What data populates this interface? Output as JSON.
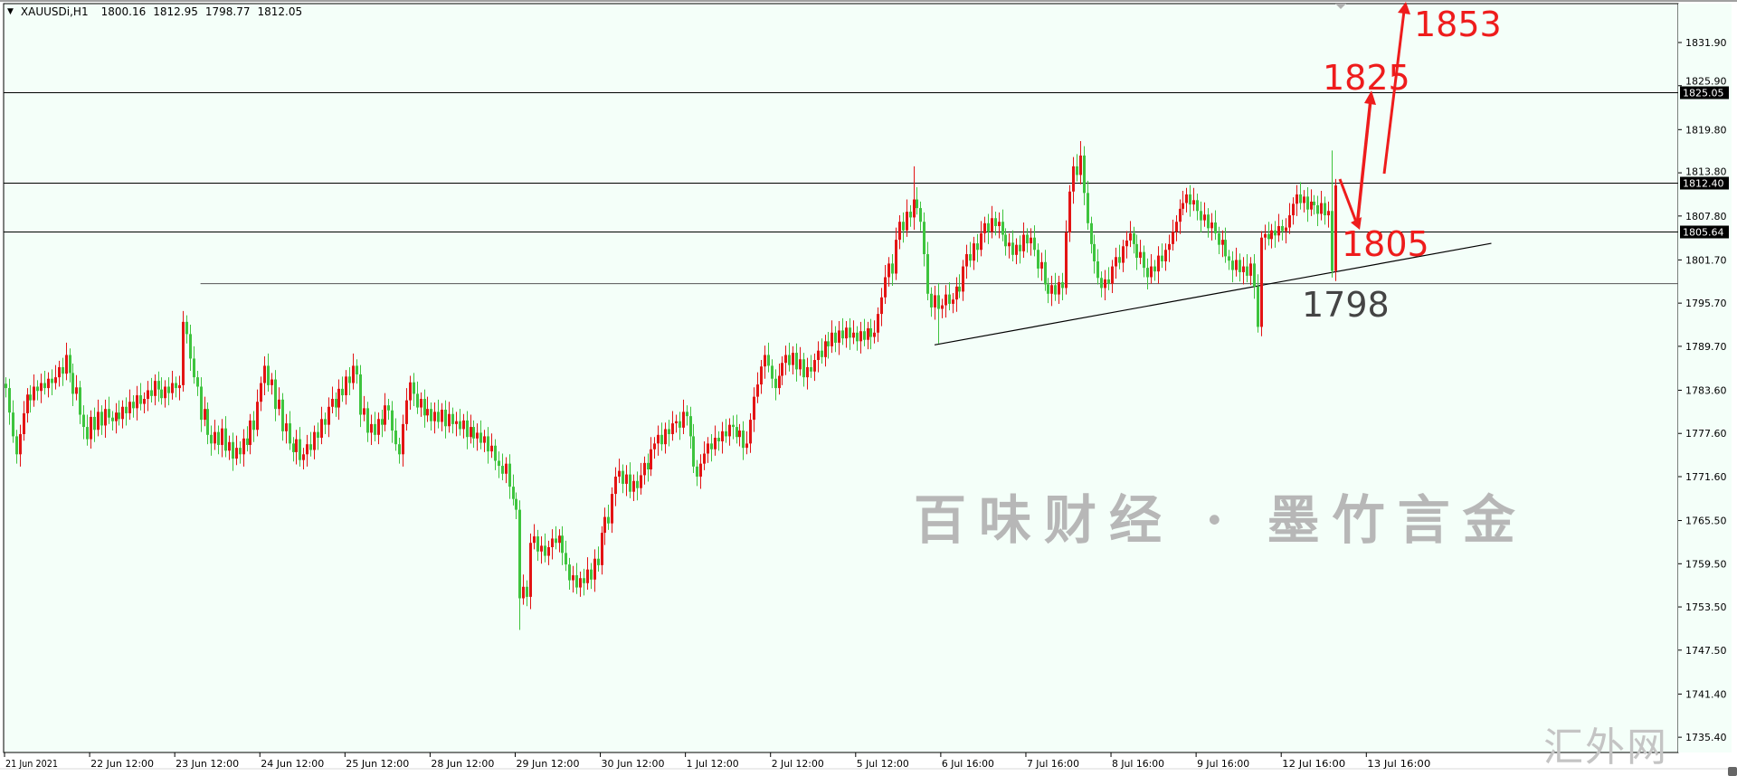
{
  "header": {
    "symbol": "XAUUSDi,H1",
    "open": "1800.16",
    "high": "1812.95",
    "low": "1798.77",
    "close": "1812.05"
  },
  "watermark": {
    "main": "百味财经 · 墨竹言金",
    "corner": "汇外网"
  },
  "annotations": {
    "target1": "1825",
    "target2": "1853",
    "pullback": "1805",
    "support": "1798",
    "arrow_color": "#ee1c1c",
    "support_color": "#444444"
  },
  "colors": {
    "background": "#f4fff9",
    "bull": "#e31414",
    "bear": "#3ec43e",
    "grid_text": "#000000"
  },
  "chart_data": {
    "type": "candlestick",
    "symbol": "XAUUSDi",
    "timeframe": "H1",
    "ylim": [
      1733.5,
      1836.5
    ],
    "grid": false,
    "y_ticks": [
      "1831.90",
      "1825.90",
      "1819.80",
      "1813.80",
      "1807.80",
      "1801.70",
      "1795.70",
      "1789.70",
      "1783.60",
      "1777.60",
      "1771.60",
      "1765.50",
      "1759.50",
      "1753.50",
      "1747.50",
      "1741.40",
      "1735.40"
    ],
    "x_ticks": [
      "21 Jun 2021",
      "22 Jun 12:00",
      "23 Jun 12:00",
      "24 Jun 12:00",
      "25 Jun 12:00",
      "28 Jun 12:00",
      "29 Jun 12:00",
      "30 Jun 12:00",
      "1 Jul 12:00",
      "2 Jul 12:00",
      "5 Jul 12:00",
      "6 Jul 16:00",
      "7 Jul 16:00",
      "8 Jul 16:00",
      "9 Jul 16:00",
      "12 Jul 16:00",
      "13 Jul 16:00"
    ],
    "bars_per_x_tick": 24,
    "first_open": 1784.5,
    "closes": [
      1783.9,
      1780.5,
      1777.2,
      1774.7,
      1777.5,
      1780.4,
      1783.0,
      1782.2,
      1784.1,
      1783.5,
      1784.6,
      1783.9,
      1785.2,
      1784.6,
      1785.4,
      1786.8,
      1785.9,
      1788.5,
      1786.0,
      1783.1,
      1784.0,
      1780.2,
      1778.5,
      1776.8,
      1779.9,
      1778.1,
      1780.6,
      1778.7,
      1781.0,
      1779.8,
      1779.3,
      1780.5,
      1779.6,
      1781.3,
      1780.4,
      1782.0,
      1781.1,
      1782.9,
      1781.7,
      1782.4,
      1783.6,
      1782.8,
      1784.9,
      1783.7,
      1782.5,
      1784.1,
      1783.2,
      1784.6,
      1783.9,
      1784.3,
      1793.1,
      1791.4,
      1788.0,
      1785.4,
      1784.1,
      1779.5,
      1781.0,
      1777.4,
      1776.2,
      1777.8,
      1776.0,
      1778.3,
      1775.2,
      1776.4,
      1774.1,
      1775.6,
      1774.7,
      1776.9,
      1776.0,
      1779.4,
      1778.1,
      1782.0,
      1784.6,
      1787.0,
      1784.3,
      1785.1,
      1781.0,
      1782.3,
      1777.9,
      1779.0,
      1776.2,
      1775.0,
      1776.8,
      1773.9,
      1774.7,
      1776.1,
      1775.3,
      1777.8,
      1777.0,
      1779.6,
      1778.8,
      1781.3,
      1782.4,
      1781.2,
      1783.8,
      1782.9,
      1785.5,
      1784.6,
      1787.0,
      1785.8,
      1780.2,
      1781.1,
      1777.7,
      1778.9,
      1777.4,
      1779.6,
      1778.8,
      1781.5,
      1780.8,
      1778.0,
      1776.1,
      1774.7,
      1778.9,
      1782.2,
      1784.7,
      1783.1,
      1781.2,
      1782.4,
      1780.1,
      1781.0,
      1779.3,
      1780.6,
      1779.2,
      1780.9,
      1778.6,
      1780.3,
      1778.9,
      1779.3,
      1778.2,
      1779.4,
      1777.1,
      1778.5,
      1776.9,
      1777.7,
      1776.3,
      1777.2,
      1775.1,
      1775.9,
      1773.8,
      1773.1,
      1772.0,
      1773.4,
      1770.2,
      1768.5,
      1767.0,
      1754.7,
      1756.3,
      1754.9,
      1762.4,
      1763.3,
      1761.2,
      1762.0,
      1760.6,
      1761.8,
      1763.0,
      1762.4,
      1763.4,
      1761.0,
      1759.4,
      1757.2,
      1757.9,
      1756.2,
      1757.5,
      1756.8,
      1758.7,
      1757.3,
      1760.2,
      1759.3,
      1763.8,
      1766.0,
      1765.1,
      1769.2,
      1771.6,
      1772.4,
      1770.6,
      1771.9,
      1769.5,
      1771.0,
      1770.0,
      1771.8,
      1773.5,
      1772.6,
      1775.4,
      1776.2,
      1777.4,
      1776.1,
      1778.2,
      1777.5,
      1779.0,
      1779.3,
      1778.4,
      1780.6,
      1780.0,
      1777.2,
      1773.0,
      1771.6,
      1773.4,
      1774.8,
      1776.2,
      1775.4,
      1777.0,
      1776.5,
      1777.9,
      1777.2,
      1778.8,
      1778.5,
      1777.1,
      1778.0,
      1775.6,
      1776.2,
      1779.5,
      1782.7,
      1784.4,
      1786.9,
      1788.5,
      1787.0,
      1785.2,
      1783.9,
      1785.6,
      1787.4,
      1788.5,
      1787.1,
      1788.8,
      1786.5,
      1787.9,
      1785.4,
      1786.8,
      1786.2,
      1787.8,
      1789.1,
      1788.2,
      1790.4,
      1789.7,
      1791.6,
      1790.2,
      1791.9,
      1790.8,
      1792.3,
      1790.9,
      1791.6,
      1790.4,
      1791.8,
      1790.6,
      1792.2,
      1791.0,
      1791.6,
      1794.2,
      1796.5,
      1799.3,
      1801.2,
      1799.8,
      1804.5,
      1807.0,
      1805.8,
      1808.4,
      1807.6,
      1810.1,
      1808.9,
      1807.0,
      1802.5,
      1797.0,
      1795.1,
      1796.8,
      1794.9,
      1795.4,
      1796.9,
      1795.6,
      1796.2,
      1798.0,
      1797.3,
      1800.8,
      1802.5,
      1801.6,
      1804.0,
      1803.1,
      1805.4,
      1806.8,
      1805.6,
      1807.5,
      1806.4,
      1807.0,
      1805.2,
      1803.6,
      1804.1,
      1802.4,
      1803.8,
      1802.9,
      1805.2,
      1804.0,
      1804.8,
      1803.1,
      1800.5,
      1801.4,
      1798.3,
      1797.0,
      1798.2,
      1796.9,
      1798.6,
      1797.8,
      1805.5,
      1811.2,
      1814.7,
      1813.5,
      1816.2,
      1811.0,
      1806.8,
      1803.9,
      1801.5,
      1799.2,
      1797.8,
      1799.0,
      1798.4,
      1800.8,
      1802.1,
      1801.3,
      1803.6,
      1804.4,
      1805.4,
      1803.9,
      1802.0,
      1802.8,
      1800.6,
      1799.3,
      1800.8,
      1800.1,
      1802.3,
      1801.5,
      1803.1,
      1803.9,
      1805.6,
      1807.0,
      1808.8,
      1809.6,
      1810.8,
      1809.4,
      1810.0,
      1808.5,
      1807.2,
      1808.0,
      1806.1,
      1806.9,
      1805.4,
      1803.8,
      1804.5,
      1802.2,
      1801.6,
      1800.3,
      1801.7,
      1800.0,
      1800.8,
      1799.5,
      1801.2,
      1798.0,
      1792.4,
      1804.8,
      1805.3,
      1804.6,
      1805.8,
      1805.1,
      1806.4,
      1805.7,
      1806.2,
      1807.9,
      1809.5,
      1810.8,
      1809.6,
      1810.5,
      1808.7,
      1809.8,
      1809.3,
      1808.1,
      1809.6,
      1807.9,
      1808.5,
      1800.16,
      1812.05
    ],
    "extremes": [
      {
        "bar": 50,
        "high": 1794.6
      },
      {
        "bar": 145,
        "low": 1750.3
      },
      {
        "bar": 256,
        "high": 1814.7
      },
      {
        "bar": 263,
        "low": 1790.1
      },
      {
        "bar": 303,
        "high": 1818.2
      },
      {
        "bar": 353,
        "low": 1791.6
      },
      {
        "bar": 374,
        "high": 1816.9
      },
      {
        "bar": 375,
        "high": 1812.95,
        "low": 1798.77
      }
    ],
    "price_lines": [
      {
        "price": 1825.05,
        "label": "1825.05"
      },
      {
        "price": 1812.4,
        "label": "1812.40"
      },
      {
        "price": 1805.64,
        "label": "1805.64"
      }
    ],
    "support_line": {
      "price": 1798.4,
      "from_bar": 55
    },
    "trendline": {
      "from_bar": 262,
      "from_price": 1789.9,
      "to_bar": 419,
      "to_price": 1804.0
    }
  }
}
